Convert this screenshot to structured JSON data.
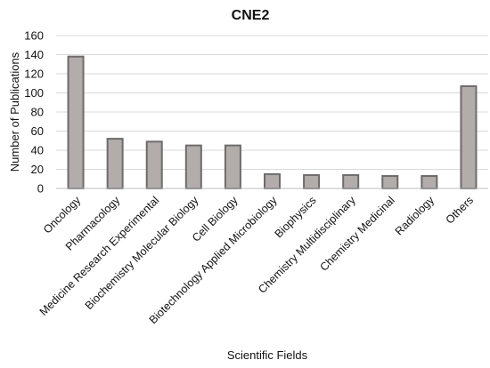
{
  "chart_data": {
    "type": "bar",
    "title": "CNE2",
    "xlabel": "Scientific Fields",
    "ylabel": "Number of Publications",
    "ylim": [
      0,
      160
    ],
    "yticks": [
      0,
      20,
      40,
      60,
      80,
      100,
      120,
      140,
      160
    ],
    "grid": true,
    "categories": [
      "Oncology",
      "Pharmacology",
      "Medicine Research Experimental",
      "Biochemistry Molecular Biology",
      "Cell Biology",
      "Biotechnology Applied Microbiology",
      "Biophysics",
      "Chemistry Multidisciplinary",
      "Chemistry Medicinal",
      "Radiology",
      "Others"
    ],
    "values": [
      138,
      52,
      49,
      45,
      45,
      15,
      14,
      14,
      13,
      13,
      107
    ],
    "colors": {
      "bar_fill": "#b2acab",
      "bar_stroke": "#6e6b6b"
    }
  }
}
